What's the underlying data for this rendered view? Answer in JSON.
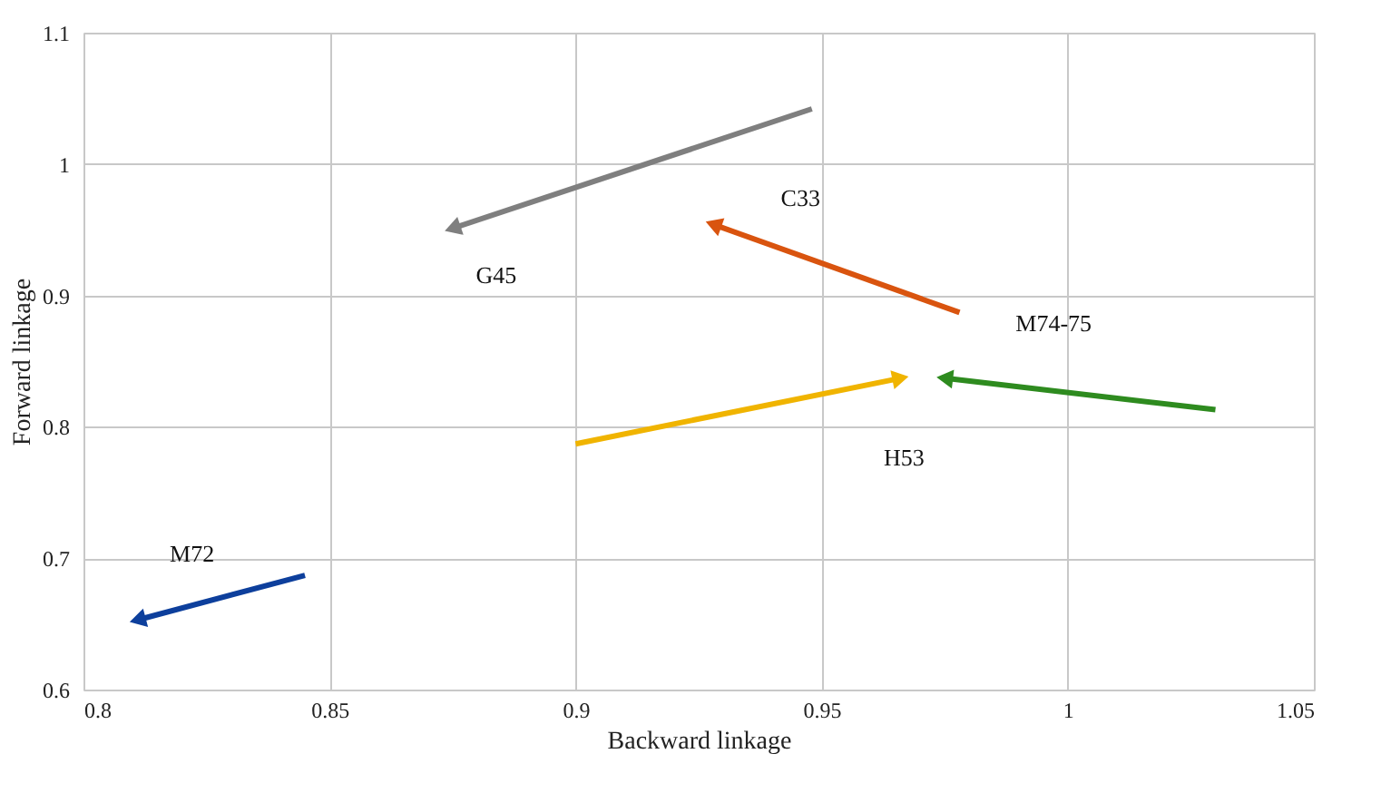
{
  "chart_data": {
    "type": "line",
    "xlabel": "Backward linkage",
    "ylabel": "Forward linkage",
    "xlim": [
      0.8,
      1.05
    ],
    "xticks": [
      0.8,
      0.85,
      0.9,
      0.95,
      1,
      1.05
    ],
    "ylim": [
      0.6,
      1.1
    ],
    "yticks": [
      0.6,
      0.7,
      0.8,
      0.9,
      1,
      1.1
    ],
    "grid": true,
    "line_style": "solid",
    "series": [
      {
        "name": "G45",
        "color": "#7f7f7f",
        "x": [
          0.948,
          0.875
        ],
        "values": [
          1.042,
          0.951
        ]
      },
      {
        "name": "C33",
        "color": "#d9540f",
        "x": [
          0.978,
          0.928
        ],
        "values": [
          0.887,
          0.954
        ]
      },
      {
        "name": "M74-75",
        "color": "#2e8b1f",
        "x": [
          1.03,
          0.975
        ],
        "values": [
          0.813,
          0.837
        ]
      },
      {
        "name": "H53",
        "color": "#f0b400",
        "x": [
          0.9,
          0.966
        ],
        "values": [
          0.787,
          0.837
        ]
      },
      {
        "name": "M72",
        "color": "#0d3f9c",
        "x": [
          0.845,
          0.811
        ],
        "values": [
          0.687,
          0.653
        ]
      }
    ]
  }
}
